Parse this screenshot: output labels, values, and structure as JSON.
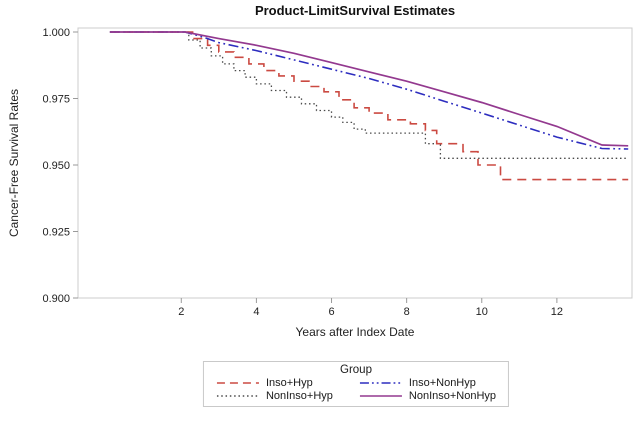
{
  "title": "Product-LimitSurvival Estimates",
  "axes": {
    "x": {
      "label": "Years after Index Date",
      "ticks": [
        {
          "value": 2,
          "label": "2"
        },
        {
          "value": 4,
          "label": "4"
        },
        {
          "value": 6,
          "label": "6"
        },
        {
          "value": 8,
          "label": "8"
        },
        {
          "value": 10,
          "label": "10"
        },
        {
          "value": 12,
          "label": "12"
        }
      ]
    },
    "y": {
      "label": "Cancer-Free Survival Rates",
      "ticks": [
        {
          "value": 1.0,
          "label": "1.000"
        },
        {
          "value": 0.975,
          "label": "0.975"
        },
        {
          "value": 0.95,
          "label": "0.950"
        },
        {
          "value": 0.925,
          "label": "0.925"
        },
        {
          "value": 0.9,
          "label": "0.900"
        }
      ]
    }
  },
  "legend": {
    "title": "Group",
    "entries": [
      {
        "label": "Inso+Hyp",
        "color": "#cb4a42",
        "dash": "8 5"
      },
      {
        "label": "Inso+NonHyp",
        "color": "#2d2dbf",
        "dash": "9 3 1.8 3 1.8 3"
      },
      {
        "label": "NonInso+Hyp",
        "color": "#4a4a4a",
        "dash": "1.5 2.8"
      },
      {
        "label": "NonInso+NonHyp",
        "color": "#93398f",
        "dash": ""
      }
    ]
  },
  "chart_data": {
    "type": "line",
    "title": "Product-LimitSurvival Estimates",
    "xlabel": "Years after Index Date",
    "ylabel": "Cancer-Free Survival Rates",
    "xlim": [
      -0.75,
      14.0
    ],
    "ylim": [
      0.9,
      1.0015
    ],
    "grid": false,
    "legend_position": "bottom",
    "series": [
      {
        "name": "NonInso+Hyp",
        "color": "#4a4a4a",
        "dash": "1.5 2.8",
        "width": 1.3,
        "interpolation": "step",
        "points": [
          [
            0.1,
            1.0
          ],
          [
            2.0,
            1.0
          ],
          [
            2.2,
            0.997
          ],
          [
            2.5,
            0.994
          ],
          [
            2.8,
            0.991
          ],
          [
            3.1,
            0.988
          ],
          [
            3.4,
            0.9855
          ],
          [
            3.7,
            0.983
          ],
          [
            4.0,
            0.9805
          ],
          [
            4.4,
            0.978
          ],
          [
            4.8,
            0.9755
          ],
          [
            5.2,
            0.973
          ],
          [
            5.6,
            0.9705
          ],
          [
            6.0,
            0.968
          ],
          [
            6.3,
            0.966
          ],
          [
            6.6,
            0.9635
          ],
          [
            6.9,
            0.962
          ],
          [
            8.5,
            0.958
          ],
          [
            8.9,
            0.9525
          ],
          [
            13.9,
            0.9525
          ]
        ]
      },
      {
        "name": "Inso+Hyp",
        "color": "#cb4a42",
        "dash": "9 6",
        "width": 1.6,
        "interpolation": "step",
        "points": [
          [
            0.1,
            1.0
          ],
          [
            2.0,
            1.0
          ],
          [
            2.3,
            0.9975
          ],
          [
            2.7,
            0.995
          ],
          [
            3.0,
            0.9925
          ],
          [
            3.4,
            0.9905
          ],
          [
            3.8,
            0.988
          ],
          [
            4.2,
            0.9855
          ],
          [
            4.6,
            0.9835
          ],
          [
            5.0,
            0.9815
          ],
          [
            5.4,
            0.9795
          ],
          [
            5.8,
            0.9775
          ],
          [
            6.2,
            0.9745
          ],
          [
            6.6,
            0.9715
          ],
          [
            7.0,
            0.9695
          ],
          [
            7.5,
            0.967
          ],
          [
            8.1,
            0.9655
          ],
          [
            8.5,
            0.963
          ],
          [
            8.8,
            0.958
          ],
          [
            9.5,
            0.955
          ],
          [
            9.9,
            0.95
          ],
          [
            10.5,
            0.9445
          ],
          [
            13.9,
            0.9445
          ]
        ]
      },
      {
        "name": "Inso+NonHyp",
        "color": "#2d2dbf",
        "dash": "10 3.5 1.8 3.5 1.8 3.5",
        "width": 1.6,
        "interpolation": "linear",
        "points": [
          [
            0.1,
            1.0
          ],
          [
            2.1,
            1.0
          ],
          [
            2.6,
            0.998
          ],
          [
            3.0,
            0.996
          ],
          [
            4.0,
            0.993
          ],
          [
            5.0,
            0.9895
          ],
          [
            6.0,
            0.986
          ],
          [
            7.0,
            0.9825
          ],
          [
            8.0,
            0.9785
          ],
          [
            9.0,
            0.974
          ],
          [
            10.0,
            0.9695
          ],
          [
            11.0,
            0.965
          ],
          [
            12.0,
            0.9605
          ],
          [
            13.2,
            0.9562
          ],
          [
            13.9,
            0.956
          ]
        ]
      },
      {
        "name": "NonInso+NonHyp",
        "color": "#93398f",
        "dash": "",
        "width": 1.7,
        "interpolation": "linear",
        "points": [
          [
            0.1,
            1.0
          ],
          [
            2.1,
            1.0
          ],
          [
            3.0,
            0.9975
          ],
          [
            4.0,
            0.995
          ],
          [
            5.0,
            0.992
          ],
          [
            6.0,
            0.9885
          ],
          [
            7.0,
            0.985
          ],
          [
            8.0,
            0.9815
          ],
          [
            9.0,
            0.9775
          ],
          [
            10.0,
            0.9735
          ],
          [
            11.0,
            0.969
          ],
          [
            12.0,
            0.9645
          ],
          [
            13.2,
            0.9575
          ],
          [
            13.9,
            0.9572
          ]
        ]
      }
    ]
  },
  "style": {
    "frame_color": "#cccccc",
    "tick_color": "#9a9a9a",
    "tick_label_color": "#222222"
  }
}
